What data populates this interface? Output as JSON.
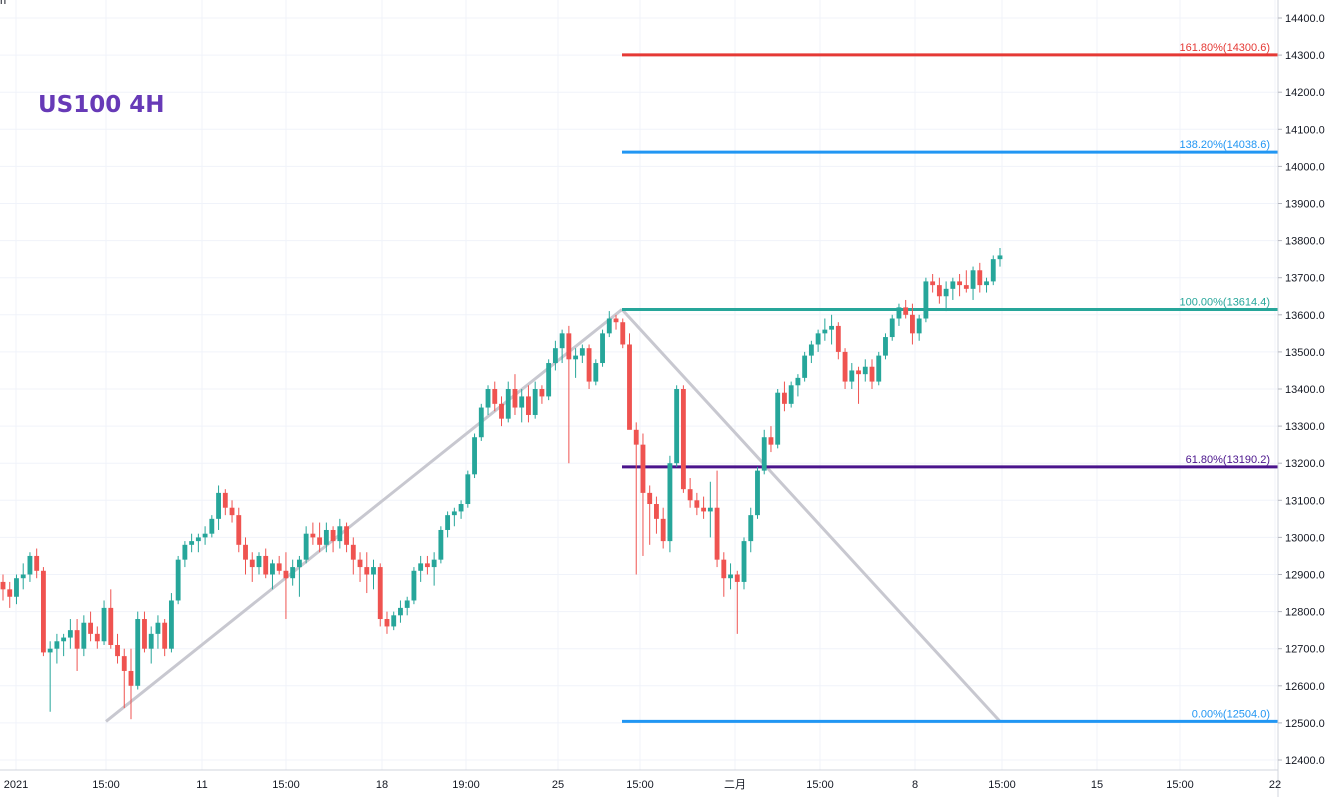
{
  "chart_data": {
    "type": "candlestick",
    "title": "US100 4H",
    "ylim": [
      12400,
      14400
    ],
    "grid": true,
    "y_ticks": [
      "14400.0",
      "14300.0",
      "14200.0",
      "14100.0",
      "14000.0",
      "13900.0",
      "13800.0",
      "13700.0",
      "13600.0",
      "13500.0",
      "13400.0",
      "13300.0",
      "13200.0",
      "13100.0",
      "13000.0",
      "12900.0",
      "12800.0",
      "12700.0",
      "12600.0",
      "12500.0",
      "12400.0"
    ],
    "x_ticks": [
      "2021",
      "15:00",
      "11",
      "15:00",
      "18",
      "19:00",
      "25",
      "15:00",
      "二月",
      "15:00",
      "8",
      "15:00",
      "15",
      "15:00",
      "22"
    ],
    "top_left_partial_label": "n",
    "colors": {
      "up": "#26a69a",
      "down": "#ef5350",
      "wick": "#555555",
      "grid": "#f0f3fa",
      "title": "#673ab7",
      "trend": "#c8c8d0"
    },
    "fib_levels": [
      {
        "ratio": "161.80%",
        "price": 14300.6,
        "label": "161.80%(14300.6)",
        "color": "#e53935"
      },
      {
        "ratio": "138.20%",
        "price": 14038.6,
        "label": "138.20%(14038.6)",
        "color": "#2196f3"
      },
      {
        "ratio": "100.00%",
        "price": 13614.4,
        "label": "100.00%(13614.4)",
        "color": "#26a69a"
      },
      {
        "ratio": "61.80%",
        "price": 13190.2,
        "label": "61.80%(13190.2)",
        "color": "#4a148c"
      },
      {
        "ratio": "0.00%",
        "price": 12504.0,
        "label": "0.00%(12504.0)",
        "color": "#2196f3"
      }
    ],
    "trend_line_prices": [
      12504.0,
      13614.4,
      12504.0
    ],
    "candles": [
      [
        12880,
        12900,
        12830,
        12860
      ],
      [
        12860,
        12880,
        12810,
        12840
      ],
      [
        12840,
        12900,
        12820,
        12890
      ],
      [
        12890,
        12930,
        12860,
        12900
      ],
      [
        12900,
        12960,
        12880,
        12950
      ],
      [
        12950,
        12970,
        12890,
        12910
      ],
      [
        12910,
        12920,
        12680,
        12690
      ],
      [
        12690,
        12720,
        12530,
        12700
      ],
      [
        12700,
        12740,
        12660,
        12720
      ],
      [
        12720,
        12740,
        12680,
        12730
      ],
      [
        12730,
        12780,
        12700,
        12750
      ],
      [
        12750,
        12780,
        12640,
        12700
      ],
      [
        12700,
        12790,
        12680,
        12770
      ],
      [
        12770,
        12800,
        12720,
        12740
      ],
      [
        12740,
        12760,
        12700,
        12720
      ],
      [
        12720,
        12830,
        12710,
        12810
      ],
      [
        12810,
        12860,
        12700,
        12710
      ],
      [
        12710,
        12740,
        12660,
        12680
      ],
      [
        12680,
        12700,
        12540,
        12640
      ],
      [
        12640,
        12700,
        12510,
        12600
      ],
      [
        12600,
        12800,
        12590,
        12780
      ],
      [
        12780,
        12800,
        12690,
        12700
      ],
      [
        12700,
        12760,
        12660,
        12740
      ],
      [
        12740,
        12790,
        12700,
        12770
      ],
      [
        12770,
        12780,
        12680,
        12700
      ],
      [
        12700,
        12850,
        12690,
        12830
      ],
      [
        12830,
        12950,
        12820,
        12940
      ],
      [
        12940,
        12990,
        12920,
        12980
      ],
      [
        12980,
        13010,
        12960,
        12990
      ],
      [
        12990,
        13010,
        12960,
        13000
      ],
      [
        13000,
        13030,
        12980,
        13010
      ],
      [
        13010,
        13060,
        13000,
        13050
      ],
      [
        13050,
        13140,
        13020,
        13120
      ],
      [
        13120,
        13130,
        13060,
        13080
      ],
      [
        13080,
        13100,
        13040,
        13060
      ],
      [
        13060,
        13080,
        12960,
        12980
      ],
      [
        12980,
        13000,
        12900,
        12940
      ],
      [
        12940,
        12960,
        12880,
        12920
      ],
      [
        12920,
        12960,
        12900,
        12950
      ],
      [
        12950,
        12970,
        12890,
        12900
      ],
      [
        12900,
        12940,
        12860,
        12930
      ],
      [
        12930,
        12950,
        12900,
        12910
      ],
      [
        12910,
        12960,
        12780,
        12890
      ],
      [
        12890,
        12940,
        12870,
        12920
      ],
      [
        12920,
        12950,
        12840,
        12940
      ],
      [
        12940,
        13030,
        12930,
        13010
      ],
      [
        13010,
        13040,
        12980,
        13000
      ],
      [
        13000,
        13040,
        12960,
        12980
      ],
      [
        12980,
        13040,
        12960,
        13020
      ],
      [
        13020,
        13030,
        12960,
        12990
      ],
      [
        12990,
        13050,
        12970,
        13030
      ],
      [
        13030,
        13040,
        12960,
        12980
      ],
      [
        12980,
        13000,
        12900,
        12940
      ],
      [
        12940,
        12960,
        12880,
        12920
      ],
      [
        12920,
        12960,
        12850,
        12900
      ],
      [
        12900,
        12940,
        12860,
        12920
      ],
      [
        12920,
        12930,
        12760,
        12780
      ],
      [
        12780,
        12800,
        12740,
        12760
      ],
      [
        12760,
        12800,
        12750,
        12790
      ],
      [
        12790,
        12830,
        12770,
        12810
      ],
      [
        12810,
        12840,
        12790,
        12830
      ],
      [
        12830,
        12920,
        12820,
        12910
      ],
      [
        12910,
        12950,
        12880,
        12930
      ],
      [
        12930,
        12950,
        12900,
        12920
      ],
      [
        12920,
        12960,
        12870,
        12940
      ],
      [
        12940,
        13030,
        12930,
        13020
      ],
      [
        13020,
        13070,
        13000,
        13060
      ],
      [
        13060,
        13080,
        13030,
        13070
      ],
      [
        13070,
        13100,
        13050,
        13090
      ],
      [
        13090,
        13180,
        13080,
        13170
      ],
      [
        13170,
        13280,
        13160,
        13270
      ],
      [
        13270,
        13360,
        13260,
        13350
      ],
      [
        13350,
        13410,
        13330,
        13400
      ],
      [
        13400,
        13420,
        13340,
        13360
      ],
      [
        13360,
        13380,
        13300,
        13320
      ],
      [
        13320,
        13420,
        13310,
        13400
      ],
      [
        13400,
        13440,
        13330,
        13350
      ],
      [
        13350,
        13400,
        13310,
        13380
      ],
      [
        13380,
        13410,
        13310,
        13330
      ],
      [
        13330,
        13420,
        13320,
        13400
      ],
      [
        13400,
        13410,
        13360,
        13380
      ],
      [
        13380,
        13480,
        13370,
        13470
      ],
      [
        13470,
        13530,
        13450,
        13510
      ],
      [
        13510,
        13560,
        13470,
        13550
      ],
      [
        13550,
        13570,
        13200,
        13480
      ],
      [
        13480,
        13510,
        13430,
        13490
      ],
      [
        13490,
        13520,
        13470,
        13510
      ],
      [
        13510,
        13520,
        13400,
        13420
      ],
      [
        13420,
        13480,
        13410,
        13470
      ],
      [
        13470,
        13560,
        13460,
        13550
      ],
      [
        13550,
        13610,
        13540,
        13590
      ],
      [
        13590,
        13600,
        13560,
        13580
      ],
      [
        13580,
        13590,
        13510,
        13520
      ],
      [
        13520,
        13550,
        13300,
        13290
      ],
      [
        13290,
        13310,
        12900,
        13250
      ],
      [
        13250,
        13280,
        12950,
        13120
      ],
      [
        13120,
        13140,
        12980,
        13090
      ],
      [
        13090,
        13110,
        13010,
        13050
      ],
      [
        13050,
        13080,
        12970,
        12990
      ],
      [
        12990,
        13220,
        12960,
        13200
      ],
      [
        13200,
        13410,
        13190,
        13400
      ],
      [
        13400,
        13410,
        13120,
        13130
      ],
      [
        13130,
        13160,
        13080,
        13100
      ],
      [
        13100,
        13120,
        13060,
        13080
      ],
      [
        13080,
        13110,
        13050,
        13070
      ],
      [
        13070,
        13150,
        13000,
        13080
      ],
      [
        13080,
        13180,
        12920,
        12940
      ],
      [
        12940,
        12960,
        12840,
        12890
      ],
      [
        12890,
        12930,
        12860,
        12900
      ],
      [
        12900,
        12910,
        12740,
        12880
      ],
      [
        12880,
        13000,
        12860,
        12990
      ],
      [
        12990,
        13080,
        12960,
        13060
      ],
      [
        13060,
        13190,
        13050,
        13180
      ],
      [
        13180,
        13290,
        13170,
        13270
      ],
      [
        13270,
        13300,
        13230,
        13250
      ],
      [
        13250,
        13400,
        13240,
        13390
      ],
      [
        13390,
        13420,
        13340,
        13360
      ],
      [
        13360,
        13420,
        13350,
        13410
      ],
      [
        13410,
        13440,
        13380,
        13430
      ],
      [
        13430,
        13500,
        13420,
        13490
      ],
      [
        13490,
        13530,
        13470,
        13520
      ],
      [
        13520,
        13560,
        13500,
        13550
      ],
      [
        13550,
        13590,
        13530,
        13560
      ],
      [
        13560,
        13600,
        13520,
        13570
      ],
      [
        13570,
        13580,
        13480,
        13500
      ],
      [
        13500,
        13510,
        13400,
        13420
      ],
      [
        13420,
        13470,
        13400,
        13450
      ],
      [
        13450,
        13460,
        13360,
        13440
      ],
      [
        13440,
        13480,
        13420,
        13460
      ],
      [
        13460,
        13480,
        13400,
        13420
      ],
      [
        13420,
        13500,
        13410,
        13490
      ],
      [
        13490,
        13550,
        13480,
        13540
      ],
      [
        13540,
        13600,
        13530,
        13590
      ],
      [
        13590,
        13630,
        13570,
        13620
      ],
      [
        13620,
        13640,
        13590,
        13600
      ],
      [
        13600,
        13630,
        13520,
        13550
      ],
      [
        13550,
        13600,
        13530,
        13590
      ],
      [
        13590,
        13700,
        13580,
        13690
      ],
      [
        13690,
        13710,
        13660,
        13680
      ],
      [
        13680,
        13700,
        13630,
        13650
      ],
      [
        13650,
        13690,
        13610,
        13670
      ],
      [
        13670,
        13700,
        13640,
        13690
      ],
      [
        13690,
        13710,
        13650,
        13680
      ],
      [
        13680,
        13720,
        13660,
        13670
      ],
      [
        13670,
        13730,
        13640,
        13720
      ],
      [
        13720,
        13740,
        13660,
        13680
      ],
      [
        13680,
        13700,
        13660,
        13690
      ],
      [
        13690,
        13760,
        13680,
        13750
      ],
      [
        13750,
        13780,
        13730,
        13760
      ]
    ]
  }
}
